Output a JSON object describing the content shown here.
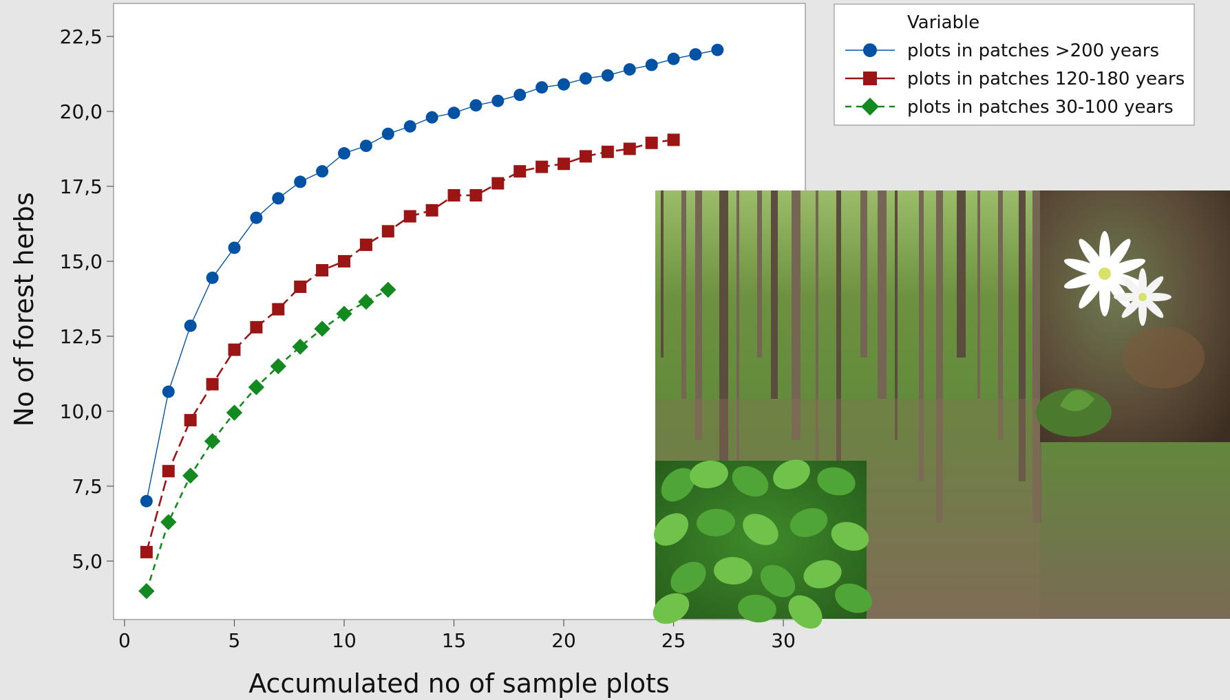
{
  "chart_data": {
    "type": "line",
    "title": "",
    "xlabel": "Accumulated no of sample plots",
    "ylabel": "No of forest herbs",
    "xlim": [
      -0.5,
      31
    ],
    "ylim": [
      3.05,
      23.6
    ],
    "xticks": [
      0,
      5,
      10,
      15,
      20,
      25,
      30
    ],
    "xtick_labels": [
      "0",
      "5",
      "10",
      "15",
      "20",
      "25",
      "30"
    ],
    "yticks": [
      5.0,
      7.5,
      10.0,
      12.5,
      15.0,
      17.5,
      20.0,
      22.5
    ],
    "ytick_labels": [
      "5,0",
      "7,5",
      "10,0",
      "12,5",
      "15,0",
      "17,5",
      "20,0",
      "22,5"
    ],
    "grid": false,
    "legend": {
      "placement": "top-right, outside plot",
      "title": "Variable"
    },
    "series": [
      {
        "name": "plots in patches >200 years",
        "color": "#0052a5",
        "marker": "circle",
        "line": "solid",
        "x": [
          1,
          2,
          3,
          4,
          5,
          6,
          7,
          8,
          9,
          10,
          11,
          12,
          13,
          14,
          15,
          16,
          17,
          18,
          19,
          20,
          21,
          22,
          23,
          24,
          25,
          26,
          27
        ],
        "y": [
          7.0,
          10.65,
          12.85,
          14.45,
          15.45,
          16.45,
          17.1,
          17.65,
          18.0,
          18.6,
          18.85,
          19.25,
          19.5,
          19.8,
          19.95,
          20.2,
          20.35,
          20.55,
          20.8,
          20.9,
          21.1,
          21.2,
          21.4,
          21.55,
          21.75,
          21.9,
          22.05
        ]
      },
      {
        "name": "plots in patches 120-180 years",
        "color": "#9c1515",
        "marker": "square",
        "line": "dashed",
        "x": [
          1,
          2,
          3,
          4,
          5,
          6,
          7,
          8,
          9,
          10,
          11,
          12,
          13,
          14,
          15,
          16,
          17,
          18,
          19,
          20,
          21,
          22,
          23,
          24,
          25
        ],
        "y": [
          5.3,
          8.0,
          9.7,
          10.9,
          12.05,
          12.8,
          13.4,
          14.15,
          14.7,
          15.0,
          15.55,
          16.0,
          16.5,
          16.7,
          17.2,
          17.2,
          17.6,
          18.0,
          18.15,
          18.25,
          18.5,
          18.65,
          18.75,
          18.95,
          19.05
        ]
      },
      {
        "name": "plots in patches 30-100 years",
        "color": "#138a1f",
        "marker": "diamond",
        "line": "dashed",
        "x": [
          1,
          2,
          3,
          4,
          5,
          6,
          7,
          8,
          9,
          10,
          11,
          12
        ],
        "y": [
          4.0,
          6.3,
          7.85,
          9.0,
          9.95,
          10.8,
          11.5,
          12.15,
          12.75,
          13.25,
          13.65,
          14.05
        ]
      }
    ]
  },
  "photos": {
    "main": "forest-stand-photo",
    "inset_top_right": "white-star-flower-photo",
    "inset_bottom_left": "green-leaf-herb-photo"
  }
}
